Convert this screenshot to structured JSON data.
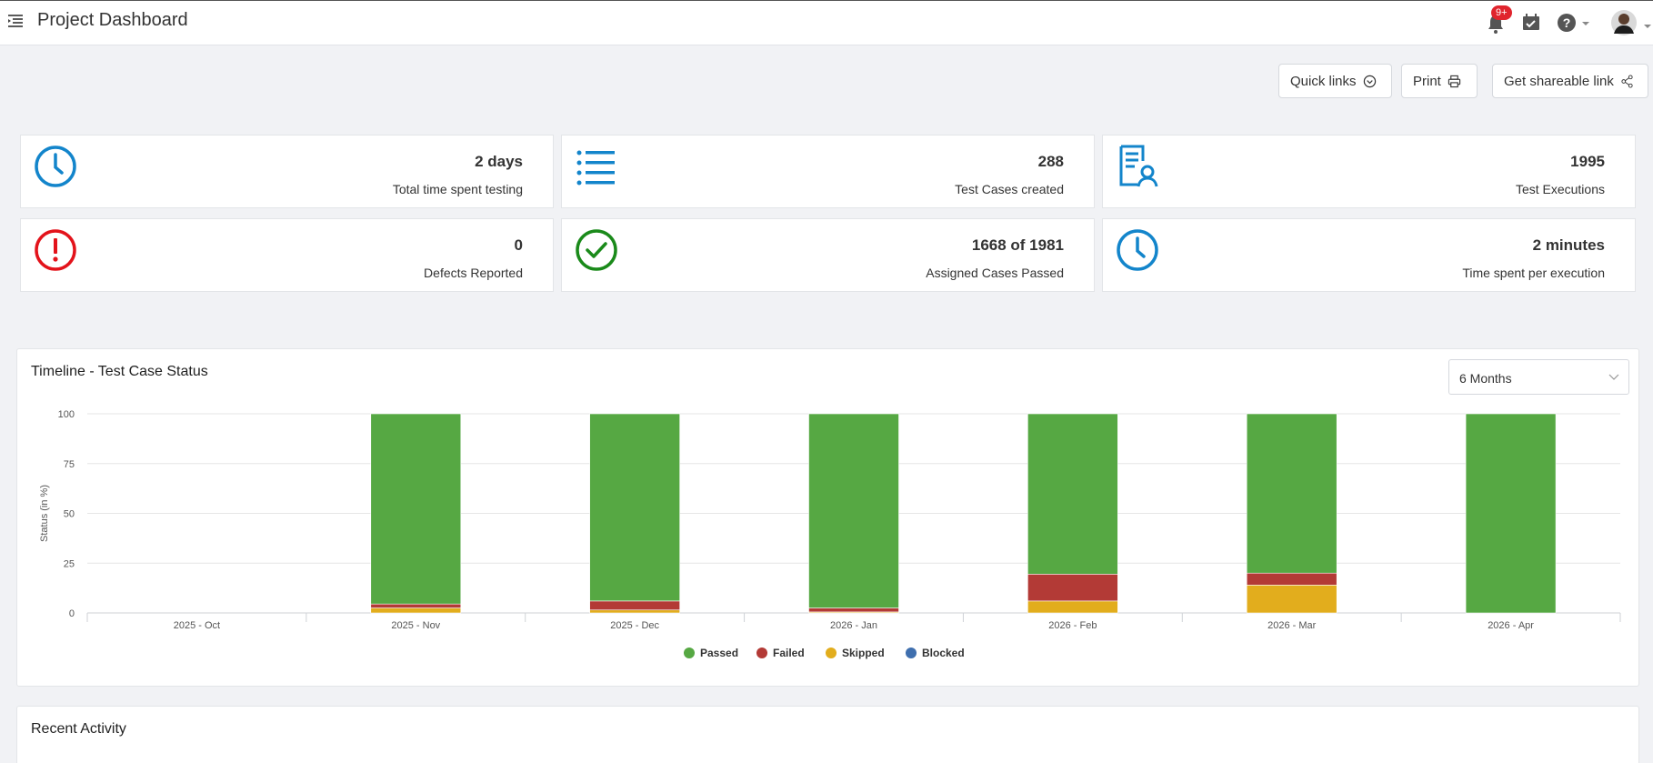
{
  "header": {
    "title": "Project Dashboard",
    "notifications_badge": "9+",
    "icons": [
      "menu-icon",
      "bell-icon",
      "calendar-check-icon",
      "help-icon",
      "avatar"
    ]
  },
  "actions": {
    "quick_links": "Quick links",
    "print": "Print",
    "share": "Get shareable link"
  },
  "stats": [
    {
      "value": "2 days",
      "label": "Total time spent testing",
      "icon": "clock-icon",
      "color": "#1385cb"
    },
    {
      "value": "288",
      "label": "Test Cases created",
      "icon": "list-icon",
      "color": "#1385cb"
    },
    {
      "value": "1995",
      "label": "Test Executions",
      "icon": "document-user-icon",
      "color": "#1385cb"
    },
    {
      "value": "0",
      "label": "Defects Reported",
      "icon": "alert-icon",
      "color": "#e3131b"
    },
    {
      "value": "1668 of 1981",
      "label": "Assigned Cases Passed",
      "icon": "check-circle-icon",
      "color": "#1a8a1a"
    },
    {
      "value": "2 minutes",
      "label": "Time spent per execution",
      "icon": "clock-icon",
      "color": "#1385cb"
    }
  ],
  "timeline": {
    "title": "Timeline - Test Case Status",
    "range": "6 Months"
  },
  "recent": {
    "title": "Recent Activity"
  },
  "chart_data": {
    "type": "bar",
    "stacked": true,
    "title": "Timeline - Test Case Status",
    "xlabel": "",
    "ylabel": "Status (in %)",
    "ylim": [
      0,
      100
    ],
    "yticks": [
      0,
      25,
      50,
      75,
      100
    ],
    "grid": true,
    "legend_position": "bottom",
    "categories": [
      "2025 - Oct",
      "2025 - Nov",
      "2025 - Dec",
      "2026 - Jan",
      "2026 - Feb",
      "2026 - Mar",
      "2026 - Apr"
    ],
    "series": [
      {
        "name": "Skipped",
        "color": "#e2ad1d",
        "values": [
          0,
          2.5,
          1.5,
          0.5,
          6,
          14,
          0
        ]
      },
      {
        "name": "Blocked",
        "color": "#3f6fae",
        "values": [
          0,
          0,
          0,
          0,
          0,
          0,
          0
        ]
      },
      {
        "name": "Failed",
        "color": "#b33a36",
        "values": [
          0,
          2.0,
          4.5,
          2.0,
          13.5,
          6,
          0
        ]
      },
      {
        "name": "Passed",
        "color": "#56a843",
        "values": [
          0,
          95.5,
          94.0,
          97.5,
          80.5,
          80,
          100
        ]
      }
    ],
    "legend": [
      "Passed",
      "Failed",
      "Skipped",
      "Blocked"
    ]
  }
}
